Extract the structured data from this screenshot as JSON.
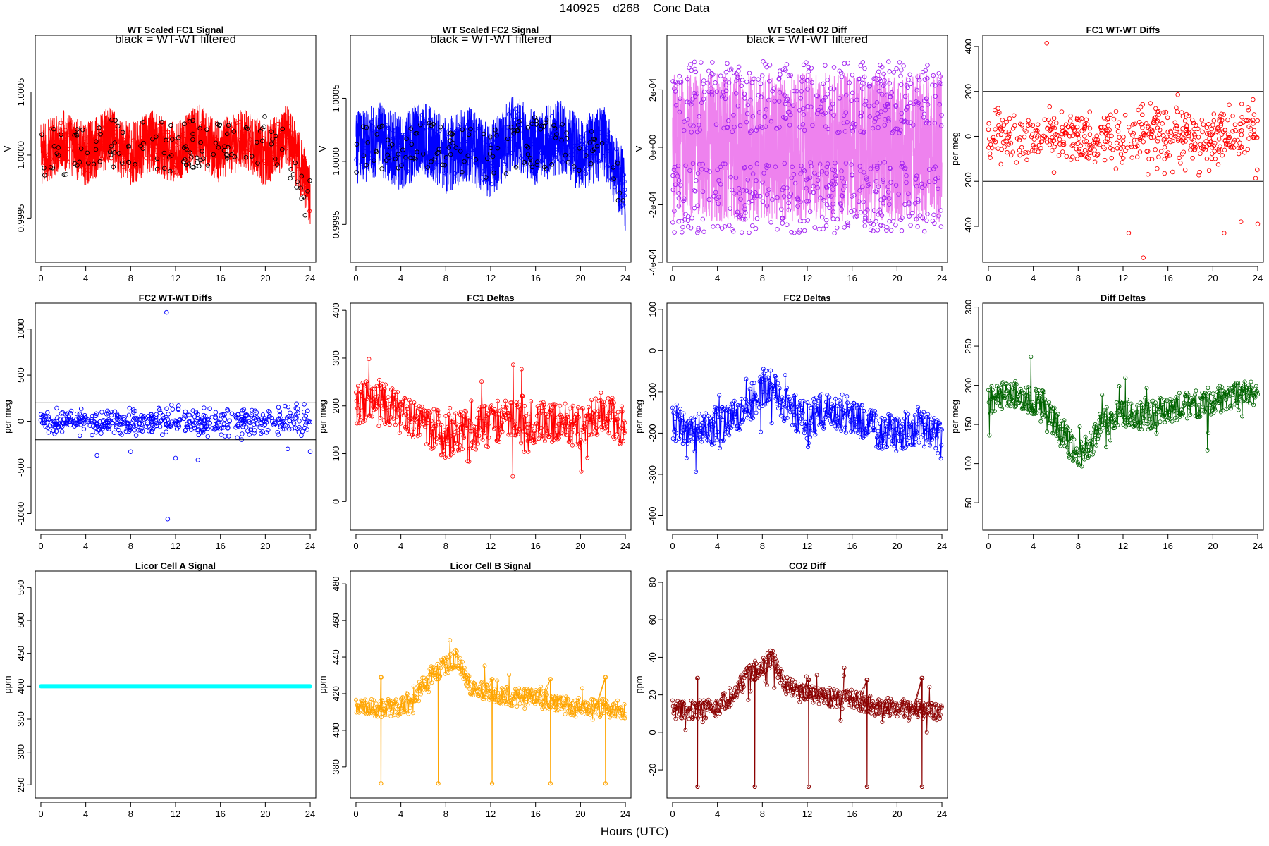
{
  "page": {
    "title": "140925    d268    Conc Data",
    "xlabel": "Hours (UTC)"
  },
  "chart_data": [
    {
      "id": "p1",
      "type": "line",
      "title": "WT Scaled FC1 Signal",
      "subtitle": "black = WT-WT filtered",
      "ylabel": "V",
      "ylim": [
        0.99915,
        1.00095
      ],
      "yticks": [
        0.9995,
        1.0,
        1.0005
      ],
      "ytick_labels": [
        "0.9995",
        "1.0000",
        "1.0005"
      ],
      "xlim": [
        -0.5,
        24.5
      ],
      "xticks": [
        0,
        4,
        8,
        12,
        16,
        20,
        24
      ],
      "xtick_labels": [
        "0",
        "4",
        "8",
        "12",
        "16",
        "20",
        "24"
      ],
      "hlines": [],
      "grid": false,
      "legend": "none",
      "series": [
        {
          "role": "signal",
          "color": "#ff0000",
          "style": "line",
          "x": [
            0,
            2,
            4,
            6,
            8,
            10,
            12,
            14,
            16,
            18,
            20,
            22,
            24
          ],
          "y": [
            1.0,
            1.00012,
            1.0,
            1.00014,
            1.0,
            1.00012,
            1.0,
            1.00016,
            1.00002,
            1.00014,
            1.0,
            1.00016,
            0.9997
          ],
          "spread": 0.00025
        },
        {
          "role": "filtered",
          "color": "#000000",
          "style": "points",
          "x": [
            0,
            3,
            6,
            9,
            12,
            15,
            18,
            21,
            24
          ],
          "y": [
            1.0,
            1.00004,
            1.00008,
            1.0001,
            1.00004,
            1.00012,
            1.00008,
            1.00012,
            0.9996
          ]
        }
      ]
    },
    {
      "id": "p2",
      "type": "line",
      "title": "WT Scaled FC2 Signal",
      "subtitle": "black = WT-WT filtered",
      "ylabel": "V",
      "ylim": [
        0.9992,
        1.001
      ],
      "yticks": [
        0.9995,
        1.0,
        1.0005
      ],
      "ytick_labels": [
        "0.9995",
        "1.0000",
        "1.0005"
      ],
      "xlim": [
        -0.5,
        24.5
      ],
      "xticks": [
        0,
        4,
        8,
        12,
        16,
        20,
        24
      ],
      "xtick_labels": [
        "0",
        "4",
        "8",
        "12",
        "16",
        "20",
        "24"
      ],
      "hlines": [],
      "grid": false,
      "legend": "none",
      "series": [
        {
          "role": "signal",
          "color": "#0000ff",
          "style": "line",
          "x": [
            0,
            2,
            4,
            6,
            8,
            10,
            12,
            14,
            16,
            18,
            20,
            22,
            24
          ],
          "y": [
            1.0001,
            1.00018,
            1.00006,
            1.0002,
            1.00004,
            1.00014,
            1.0,
            1.00024,
            1.0001,
            1.0002,
            1.00006,
            1.00016,
            0.99975
          ],
          "spread": 0.0003
        },
        {
          "role": "filtered",
          "color": "#000000",
          "style": "points",
          "x": [
            0,
            3,
            6,
            9,
            12,
            15,
            18,
            21,
            24
          ],
          "y": [
            1.00008,
            1.0001,
            1.00014,
            1.00008,
            1.00004,
            1.00016,
            1.00012,
            1.0001,
            0.9997
          ]
        }
      ]
    },
    {
      "id": "p3",
      "type": "line",
      "title": "WT Scaled O2 Diff",
      "subtitle": "black = WT-WT filtered",
      "ylabel": "V",
      "ylim": [
        -0.0004,
        0.00039
      ],
      "yticks": [
        -0.0004,
        -0.0002,
        0.0,
        0.0002
      ],
      "ytick_labels": [
        "-4e-04",
        "-2e-04",
        "0e+00",
        "2e-04"
      ],
      "xlim": [
        -0.5,
        24.5
      ],
      "xticks": [
        0,
        4,
        8,
        12,
        16,
        20,
        24
      ],
      "xtick_labels": [
        "0",
        "4",
        "8",
        "12",
        "16",
        "20",
        "24"
      ],
      "hlines": [],
      "grid": false,
      "legend": "none",
      "series": [
        {
          "role": "signal",
          "color": "#ee82ee",
          "style": "band",
          "x": [
            0,
            24
          ],
          "y": [
            0.0,
            0.0
          ],
          "spread": 0.00026
        },
        {
          "role": "points",
          "color": "#a020f0",
          "style": "points",
          "x": [
            0,
            4,
            8,
            12,
            16,
            20,
            24
          ],
          "y": [
            0.00018,
            -0.00018,
            0.00015,
            -0.00016,
            0.00017,
            -0.00018,
            0.00016
          ]
        }
      ]
    },
    {
      "id": "p4",
      "type": "scatter",
      "title": "FC1 WT-WT Diffs",
      "subtitle": "",
      "ylabel": "per meg",
      "ylim": [
        -560,
        450
      ],
      "yticks": [
        -400,
        -200,
        0,
        200,
        400
      ],
      "ytick_labels": [
        "-400",
        "-200",
        "0",
        "200",
        "400"
      ],
      "xlim": [
        -0.5,
        24.5
      ],
      "xticks": [
        0,
        4,
        8,
        12,
        16,
        20,
        24
      ],
      "xtick_labels": [
        "0",
        "4",
        "8",
        "12",
        "16",
        "20",
        "24"
      ],
      "hlines": [
        200,
        -200
      ],
      "grid": false,
      "legend": "none",
      "series": [
        {
          "role": "points",
          "color": "#ff0000",
          "style": "points",
          "x": [
            0,
            1.5,
            3,
            4.5,
            5.2,
            6,
            8,
            10,
            12,
            12.5,
            13.8,
            16,
            18,
            20,
            21,
            22.5,
            24
          ],
          "y": [
            30,
            -20,
            50,
            -40,
            415,
            10,
            -30,
            40,
            -20,
            -430,
            -540,
            20,
            -60,
            50,
            -430,
            -380,
            -390
          ],
          "spread": 80
        }
      ]
    },
    {
      "id": "p5",
      "type": "scatter",
      "title": "FC2 WT-WT Diffs",
      "subtitle": "",
      "ylabel": "per meg",
      "ylim": [
        -1180,
        1280
      ],
      "yticks": [
        -1000,
        -500,
        0,
        500,
        1000
      ],
      "ytick_labels": [
        "-1000",
        "-500",
        "0",
        "500",
        "1000"
      ],
      "xlim": [
        -0.5,
        24.5
      ],
      "xticks": [
        0,
        4,
        8,
        12,
        16,
        20,
        24
      ],
      "xtick_labels": [
        "0",
        "4",
        "8",
        "12",
        "16",
        "20",
        "24"
      ],
      "hlines": [
        200,
        -200
      ],
      "grid": false,
      "legend": "none",
      "series": [
        {
          "role": "points",
          "color": "#0000ff",
          "style": "points",
          "x": [
            0,
            2,
            4,
            5,
            8,
            10,
            11.2,
            11.3,
            12,
            14,
            16,
            18,
            20,
            22,
            24
          ],
          "y": [
            10,
            -20,
            40,
            -370,
            -330,
            30,
            1180,
            -1060,
            -400,
            -420,
            20,
            -60,
            30,
            -300,
            -330
          ],
          "spread": 90
        }
      ]
    },
    {
      "id": "p6",
      "type": "line",
      "title": "FC1 Deltas",
      "subtitle": "",
      "ylabel": "per meg",
      "ylim": [
        -60,
        415
      ],
      "yticks": [
        0,
        100,
        200,
        300,
        400
      ],
      "ytick_labels": [
        "0",
        "100",
        "200",
        "300",
        "400"
      ],
      "xlim": [
        -0.5,
        24.5
      ],
      "xticks": [
        0,
        4,
        8,
        12,
        16,
        20,
        24
      ],
      "xtick_labels": [
        "0",
        "4",
        "8",
        "12",
        "16",
        "20",
        "24"
      ],
      "hlines": [],
      "grid": false,
      "legend": "none",
      "series": [
        {
          "role": "signal",
          "color": "#ff0000",
          "style": "linepoints",
          "x": [
            0,
            2,
            4,
            6,
            8,
            10,
            12,
            14,
            16,
            18,
            20,
            22,
            24
          ],
          "y": [
            200,
            215,
            180,
            165,
            135,
            150,
            160,
            185,
            165,
            170,
            150,
            195,
            150
          ],
          "spread": 45
        }
      ]
    },
    {
      "id": "p7",
      "type": "line",
      "title": "FC2 Deltas",
      "subtitle": "",
      "ylabel": "per meg",
      "ylim": [
        -435,
        115
      ],
      "yticks": [
        -400,
        -300,
        -200,
        -100,
        0,
        100
      ],
      "ytick_labels": [
        "-400",
        "-300",
        "-200",
        "-100",
        "0",
        "100"
      ],
      "xlim": [
        -0.5,
        24.5
      ],
      "xticks": [
        0,
        4,
        8,
        12,
        16,
        20,
        24
      ],
      "xtick_labels": [
        "0",
        "4",
        "8",
        "12",
        "16",
        "20",
        "24"
      ],
      "hlines": [],
      "grid": false,
      "legend": "none",
      "series": [
        {
          "role": "signal",
          "color": "#0000ff",
          "style": "linepoints",
          "x": [
            0,
            2,
            4,
            6,
            8,
            9,
            10,
            12,
            14,
            16,
            18,
            20,
            22,
            24
          ],
          "y": [
            -170,
            -200,
            -180,
            -160,
            -90,
            -80,
            -130,
            -170,
            -140,
            -160,
            -190,
            -200,
            -180,
            -220
          ],
          "spread": 45
        }
      ]
    },
    {
      "id": "p8",
      "type": "line",
      "title": "Diff Deltas",
      "subtitle": "",
      "ylabel": "per meg",
      "ylim": [
        15,
        305
      ],
      "yticks": [
        50,
        100,
        150,
        200,
        250,
        300
      ],
      "ytick_labels": [
        "50",
        "100",
        "150",
        "200",
        "250",
        "300"
      ],
      "xlim": [
        -0.5,
        24.5
      ],
      "xticks": [
        0,
        4,
        8,
        12,
        16,
        20,
        24
      ],
      "xtick_labels": [
        "0",
        "4",
        "8",
        "12",
        "16",
        "20",
        "24"
      ],
      "hlines": [],
      "grid": false,
      "legend": "none",
      "series": [
        {
          "role": "signal",
          "color": "#006400",
          "style": "linepoints",
          "x": [
            0,
            2,
            4,
            5,
            6,
            7,
            8,
            9,
            10,
            12,
            14,
            16,
            18,
            20,
            22,
            24
          ],
          "y": [
            180,
            190,
            180,
            175,
            150,
            130,
            110,
            120,
            150,
            165,
            160,
            170,
            175,
            180,
            185,
            190
          ],
          "spread": 18
        }
      ]
    },
    {
      "id": "p9",
      "type": "line",
      "title": "Licor Cell A Signal",
      "subtitle": "",
      "ylabel": "ppm",
      "ylim": [
        230,
        575
      ],
      "yticks": [
        250,
        300,
        350,
        400,
        450,
        500,
        550
      ],
      "ytick_labels": [
        "250",
        "300",
        "350",
        "400",
        "450",
        "500",
        "550"
      ],
      "xlim": [
        -0.5,
        24.5
      ],
      "xticks": [
        0,
        4,
        8,
        12,
        16,
        20,
        24
      ],
      "xtick_labels": [
        "0",
        "4",
        "8",
        "12",
        "16",
        "20",
        "24"
      ],
      "hlines": [],
      "grid": false,
      "legend": "none",
      "series": [
        {
          "role": "signal",
          "color": "#00ffff",
          "style": "thick",
          "x": [
            0,
            24
          ],
          "y": [
            400,
            400
          ]
        }
      ]
    },
    {
      "id": "p10",
      "type": "line",
      "title": "Licor Cell B Signal",
      "subtitle": "",
      "ylabel": "ppm",
      "ylim": [
        363,
        487
      ],
      "yticks": [
        380,
        400,
        420,
        440,
        460,
        480
      ],
      "ytick_labels": [
        "380",
        "400",
        "420",
        "440",
        "460",
        "480"
      ],
      "xlim": [
        -0.5,
        24.5
      ],
      "xticks": [
        0,
        4,
        8,
        12,
        16,
        20,
        24
      ],
      "xtick_labels": [
        "0",
        "4",
        "8",
        "12",
        "16",
        "20",
        "24"
      ],
      "hlines": [],
      "grid": false,
      "legend": "none",
      "series": [
        {
          "role": "signal",
          "color": "#ffa500",
          "style": "linepoints",
          "x": [
            0,
            2,
            4,
            5,
            6,
            7,
            8,
            9,
            10,
            12,
            14,
            16,
            18,
            20,
            22,
            24
          ],
          "y": [
            412,
            412,
            413,
            418,
            425,
            432,
            435,
            440,
            425,
            420,
            418,
            418,
            414,
            413,
            412,
            411
          ],
          "spread": 5,
          "dips": [
            {
              "x": 2.2,
              "low": 371,
              "high": 429
            },
            {
              "x": 7.3,
              "low": 371,
              "high": 428
            },
            {
              "x": 12.1,
              "low": 371,
              "high": 428
            },
            {
              "x": 17.3,
              "low": 371,
              "high": 428
            },
            {
              "x": 22.2,
              "low": 371,
              "high": 429
            }
          ]
        }
      ]
    },
    {
      "id": "p11",
      "type": "line",
      "title": "CO2 Diff",
      "subtitle": "",
      "ylabel": "ppm",
      "ylim": [
        -35,
        86
      ],
      "yticks": [
        -20,
        0,
        20,
        40,
        60,
        80
      ],
      "ytick_labels": [
        "-20",
        "0",
        "20",
        "40",
        "60",
        "80"
      ],
      "xlim": [
        -0.5,
        24.5
      ],
      "xticks": [
        0,
        4,
        8,
        12,
        16,
        20,
        24
      ],
      "xtick_labels": [
        "0",
        "4",
        "8",
        "12",
        "16",
        "20",
        "24"
      ],
      "hlines": [],
      "grid": false,
      "legend": "none",
      "series": [
        {
          "role": "signal",
          "color": "#8b0000",
          "style": "linepoints",
          "x": [
            0,
            2,
            4,
            5,
            6,
            7,
            8,
            9,
            10,
            12,
            14,
            16,
            18,
            20,
            22,
            24
          ],
          "y": [
            12,
            12,
            13,
            18,
            25,
            32,
            35,
            40,
            25,
            20,
            18,
            18,
            14,
            13,
            12,
            11
          ],
          "spread": 5,
          "dips": [
            {
              "x": 2.2,
              "low": -29,
              "high": 29
            },
            {
              "x": 7.3,
              "low": -29,
              "high": 28
            },
            {
              "x": 12.1,
              "low": -29,
              "high": 28
            },
            {
              "x": 17.3,
              "low": -29,
              "high": 28
            },
            {
              "x": 22.2,
              "low": -29,
              "high": 29
            }
          ]
        }
      ]
    }
  ]
}
